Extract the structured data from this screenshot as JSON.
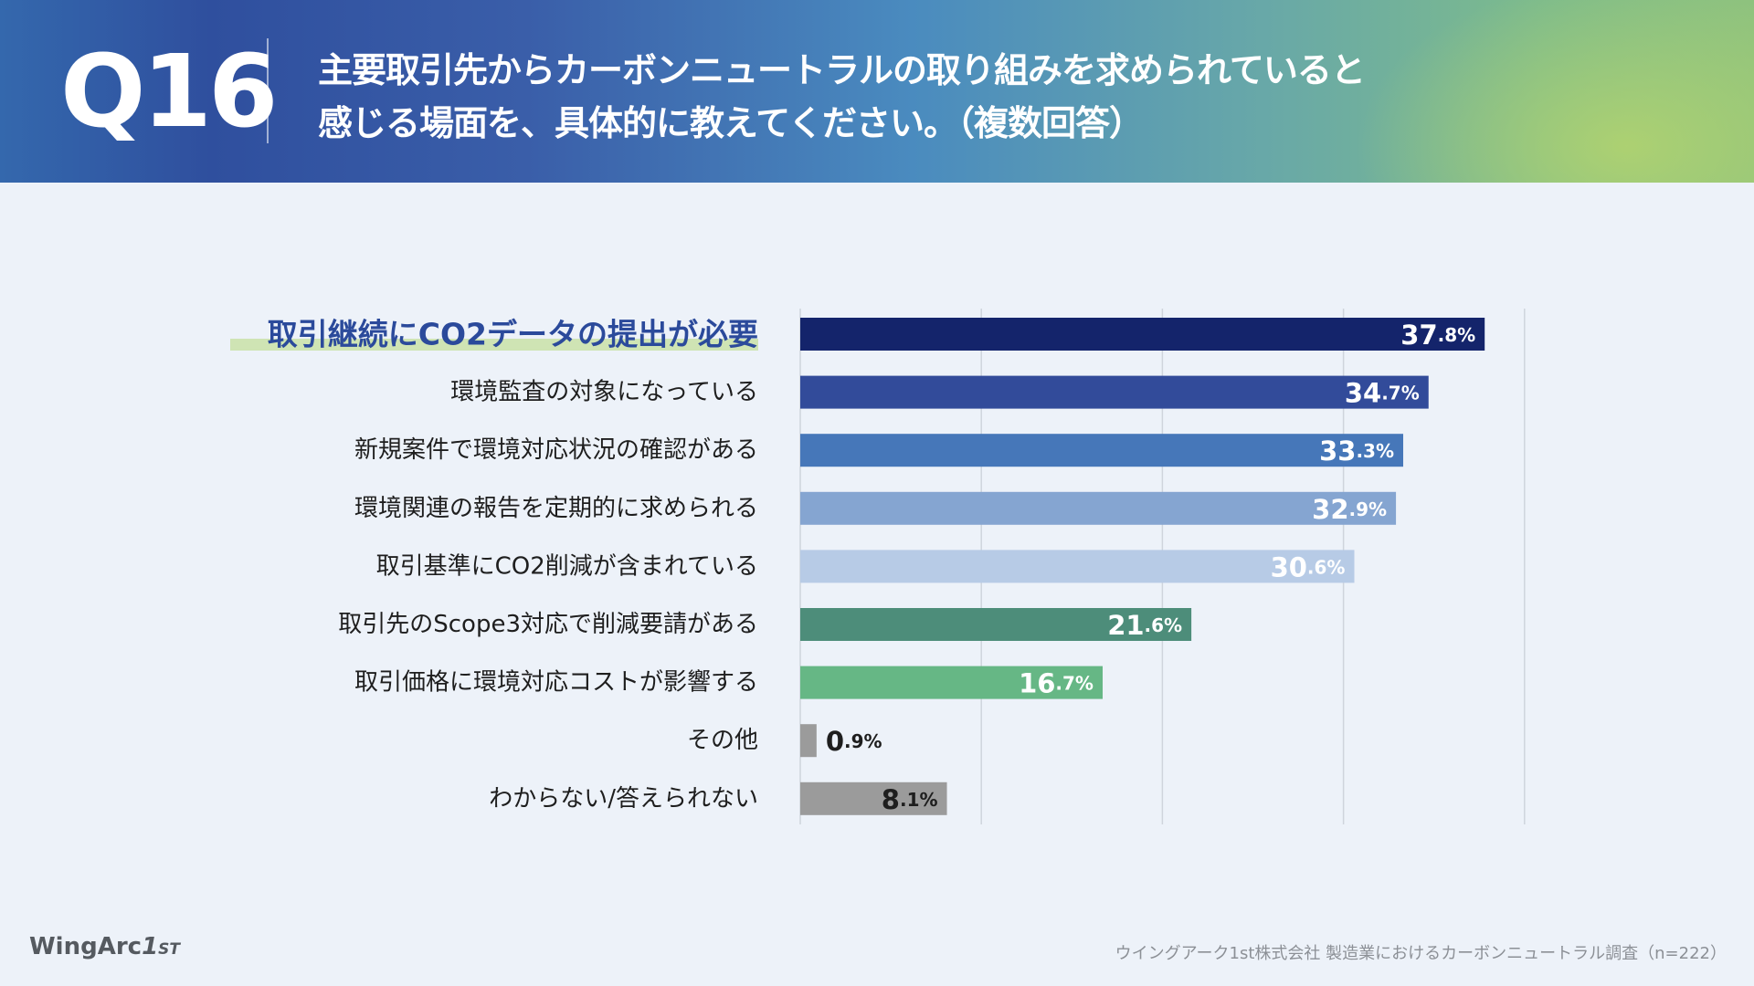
{
  "header": {
    "question_number": "Q16",
    "question_line1": "主要取引先からカーボンニュートラルの取り組みを求められていると",
    "question_line2": "感じる場面を、具体的に教えてください。（複数回答）"
  },
  "chart_data": {
    "type": "bar",
    "orientation": "horizontal",
    "unit": "%",
    "xlim": [
      0,
      40
    ],
    "grid": true,
    "categories": [
      "取引継続にCO2データの提出が必要",
      "環境監査の対象になっている",
      "新規案件で環境対応状況の確認がある",
      "環境関連の報告を定期的に求められる",
      "取引基準にCO2削減が含まれている",
      "取引先のScope3対応で削減要請がある",
      "取引価格に環境対応コストが影響する",
      "その他",
      "わからない/答えられない"
    ],
    "values": [
      37.8,
      34.7,
      33.3,
      32.9,
      30.6,
      21.6,
      16.7,
      0.9,
      8.1
    ],
    "bar_colors": [
      "#14246b",
      "#324b9a",
      "#4677b9",
      "#85a5d1",
      "#b7cbe6",
      "#4d8d7a",
      "#66b785",
      "#9b9b9b",
      "#9b9b9b"
    ],
    "label_colors": [
      "#ffffff",
      "#ffffff",
      "#ffffff",
      "#ffffff",
      "#ffffff",
      "#ffffff",
      "#ffffff",
      "#1e1e1e",
      "#1e1e1e"
    ],
    "highlight_index": 0,
    "highlight_color": "#2b4a9b",
    "highlight_underline_color": "#cfe4b4"
  },
  "footer": {
    "logo_text": "WingArc",
    "logo_mark": "1",
    "logo_suffix": "ST",
    "source": "ウイングアーク1st株式会社 製造業におけるカーボンニュートラル調査（n=222）"
  }
}
